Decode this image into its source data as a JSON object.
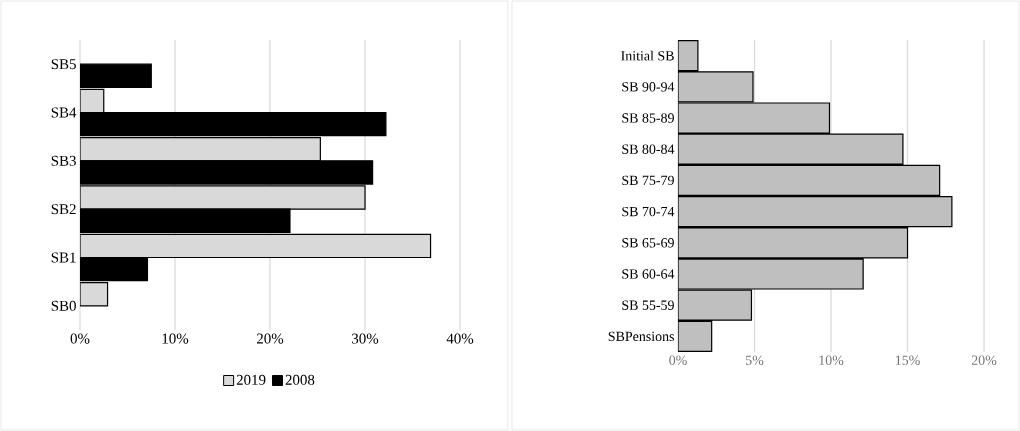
{
  "chart_data": [
    {
      "type": "bar",
      "orientation": "horizontal",
      "categories": [
        "SB5",
        "SB4",
        "SB3",
        "SB2",
        "SB1",
        "SB0"
      ],
      "series": [
        {
          "name": "2019",
          "color": "#d9d9d9",
          "values": [
            null,
            2.5,
            25.3,
            30.0,
            36.9,
            2.9
          ]
        },
        {
          "name": "2008",
          "color": "#000000",
          "values": [
            7.5,
            32.2,
            30.8,
            22.1,
            7.1,
            null
          ]
        }
      ],
      "xlim": [
        0,
        40
      ],
      "xticks": [
        {
          "value": 0,
          "label": "0%"
        },
        {
          "value": 10,
          "label": "10%"
        },
        {
          "value": 20,
          "label": "20%"
        },
        {
          "value": 30,
          "label": "30%"
        },
        {
          "value": 40,
          "label": "40%"
        }
      ],
      "grid": "x",
      "legend": "bottom"
    },
    {
      "type": "bar",
      "orientation": "horizontal",
      "categories": [
        "Initial SB",
        "SB 90-94",
        "SB 85-89",
        "SB 80-84",
        "SB 75-79",
        "SB 70-74",
        "SB 65-69",
        "SB 60-64",
        "SB 55-59",
        "SBPensions"
      ],
      "series": [
        {
          "color": "#bfbfbf",
          "values": [
            1.3,
            4.9,
            9.9,
            14.7,
            17.1,
            17.9,
            15.0,
            12.1,
            4.8,
            2.2
          ]
        }
      ],
      "xlim": [
        0,
        20
      ],
      "xticks": [
        {
          "value": 0,
          "label": "0%"
        },
        {
          "value": 5,
          "label": "5%"
        },
        {
          "value": 10,
          "label": "10%"
        },
        {
          "value": 15,
          "label": "15%"
        },
        {
          "value": 20,
          "label": "20%"
        }
      ],
      "grid": "x"
    }
  ]
}
